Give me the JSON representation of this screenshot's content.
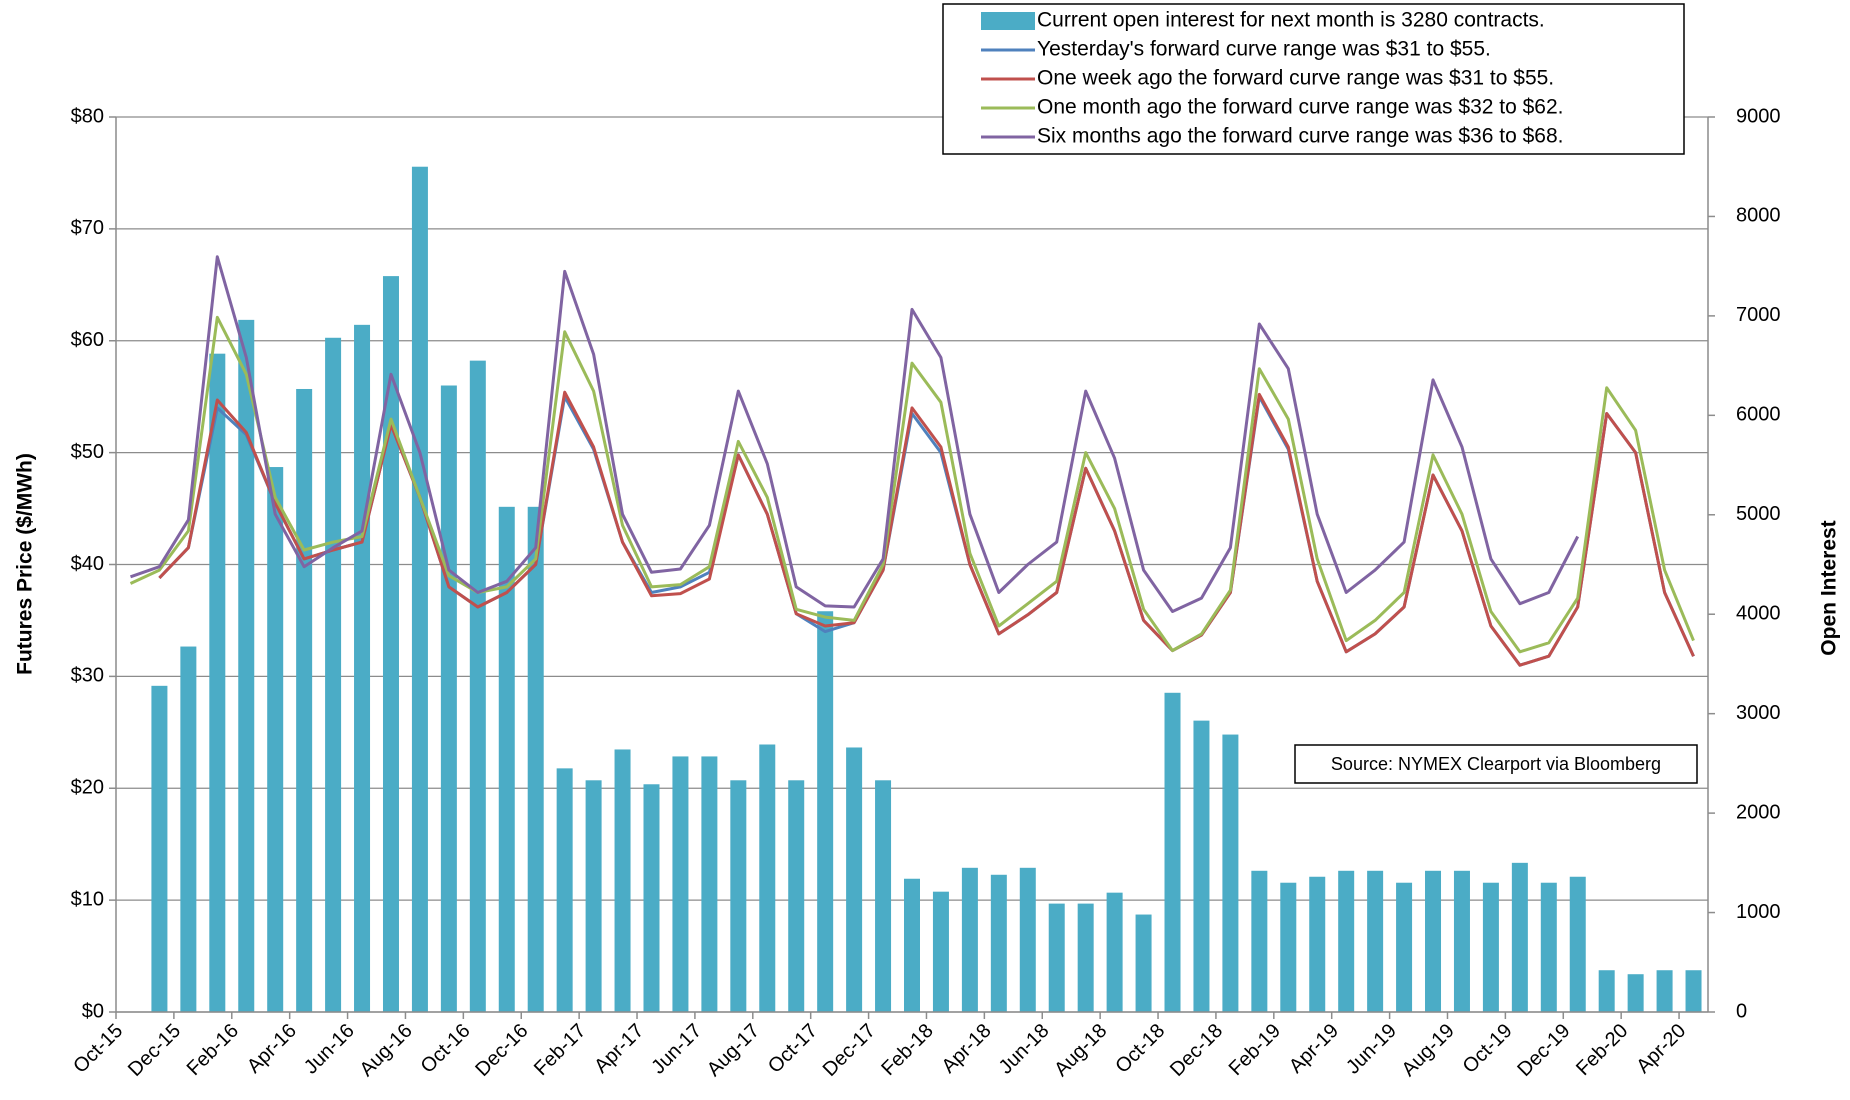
{
  "chart_data": {
    "type": "bar",
    "y_label": "Futures Price ($/MWh)",
    "y2_label": "Open Interest",
    "source": "Source: NYMEX Clearport via Bloomberg",
    "legend": "upper right",
    "grid": true,
    "categories": [
      "Oct-15",
      null,
      "Dec-15",
      null,
      "Feb-16",
      null,
      "Apr-16",
      null,
      "Jun-16",
      null,
      "Aug-16",
      null,
      "Oct-16",
      null,
      "Dec-16",
      null,
      "Feb-17",
      null,
      "Apr-17",
      null,
      "Jun-17",
      null,
      "Aug-17",
      null,
      "Oct-17",
      null,
      "Dec-17",
      null,
      "Feb-18",
      null,
      "Apr-18",
      null,
      "Jun-18",
      null,
      "Aug-18",
      null,
      "Oct-18",
      null,
      "Dec-18",
      null,
      "Feb-19",
      null,
      "Apr-19",
      null,
      "Jun-19",
      null,
      "Aug-19",
      null,
      "Oct-19",
      null,
      "Dec-19",
      null,
      "Feb-20",
      null,
      "Apr-20"
    ],
    "ylim": [
      0,
      80
    ],
    "yticks": [
      {
        "value": 0,
        "label": "$0"
      },
      {
        "value": 10,
        "label": "$10"
      },
      {
        "value": 20,
        "label": "$20"
      },
      {
        "value": 30,
        "label": "$30"
      },
      {
        "value": 40,
        "label": "$40"
      },
      {
        "value": 50,
        "label": "$50"
      },
      {
        "value": 60,
        "label": "$60"
      },
      {
        "value": 70,
        "label": "$70"
      },
      {
        "value": 80,
        "label": "$80"
      }
    ],
    "y2lim": [
      0,
      9000
    ],
    "y2ticks": [
      0,
      1000,
      2000,
      3000,
      4000,
      5000,
      6000,
      7000,
      8000,
      9000
    ],
    "series": [
      {
        "name": "Current open interest for next month is 3280 contracts.",
        "type": "bar",
        "axis": "y2",
        "color": "#4bacc6",
        "values": [
          null,
          3280,
          3675,
          6620,
          6960,
          5480,
          6265,
          6780,
          6910,
          7400,
          8500,
          6300,
          6550,
          5080,
          5080,
          2450,
          2330,
          2640,
          2290,
          2570,
          2570,
          2330,
          2690,
          2330,
          4030,
          2660,
          2330,
          1340,
          1210,
          1450,
          1380,
          1450,
          1090,
          1090,
          1200,
          980,
          3210,
          2930,
          2790,
          1420,
          1300,
          1360,
          1420,
          1420,
          1300,
          1420,
          1420,
          1300,
          1500,
          1300,
          1360,
          420,
          380,
          420,
          420
        ]
      },
      {
        "name": "Yesterday's forward curve range was $31 to $55.",
        "type": "line",
        "color": "#4f81bd",
        "values": [
          null,
          38.8,
          41.5,
          54.0,
          51.6,
          45.5,
          40.5,
          41.3,
          42.0,
          52.5,
          46.0,
          38.0,
          36.2,
          37.5,
          40.0,
          55.0,
          50.3,
          42.0,
          37.5,
          38.0,
          39.3,
          49.8,
          44.5,
          35.6,
          34.0,
          34.8,
          39.5,
          53.5,
          50.0,
          40.0,
          33.8,
          35.5,
          37.5,
          48.6,
          43.0,
          35.0,
          32.3,
          33.7,
          37.5,
          55.0,
          50.3,
          38.5,
          32.2,
          33.8,
          36.2,
          48.0,
          43.0,
          34.5,
          31.0,
          31.8,
          36.2,
          53.5,
          50.0,
          37.5,
          31.8
        ]
      },
      {
        "name": "One week ago the forward curve range was $31 to $55.",
        "type": "line",
        "color": "#c0504d",
        "values": [
          null,
          38.8,
          41.5,
          54.7,
          51.8,
          45.5,
          40.5,
          41.3,
          42.0,
          52.5,
          46.0,
          38.0,
          36.2,
          37.5,
          40.0,
          55.4,
          50.5,
          42.0,
          37.2,
          37.4,
          38.7,
          49.8,
          44.5,
          35.6,
          34.5,
          34.8,
          39.5,
          54.0,
          50.5,
          40.0,
          33.8,
          35.5,
          37.5,
          48.6,
          43.0,
          35.0,
          32.3,
          33.7,
          37.5,
          55.2,
          50.5,
          38.5,
          32.2,
          33.8,
          36.2,
          48.0,
          43.0,
          34.5,
          31.0,
          31.8,
          36.2,
          53.5,
          50.0,
          37.5,
          31.8
        ]
      },
      {
        "name": "One month ago the forward curve range was $32 to $62.",
        "type": "line",
        "color": "#9bbb59",
        "values": [
          38.3,
          39.5,
          43.0,
          62.1,
          57.0,
          46.0,
          41.3,
          42.0,
          42.5,
          53.0,
          46.0,
          39.0,
          37.5,
          38.0,
          40.5,
          60.8,
          55.5,
          43.5,
          38.0,
          38.2,
          39.8,
          51.0,
          46.0,
          36.0,
          35.3,
          35.0,
          40.0,
          58.0,
          54.5,
          41.0,
          34.5,
          36.5,
          38.5,
          50.0,
          45.0,
          36.0,
          32.3,
          33.8,
          37.7,
          57.5,
          53.0,
          40.5,
          33.2,
          35.0,
          37.5,
          49.8,
          44.5,
          35.8,
          32.2,
          33.0,
          37.0,
          55.8,
          52.0,
          39.5,
          33.2
        ]
      },
      {
        "name": "Six months ago the forward curve range was $36 to $68.",
        "type": "line",
        "color": "#8064a2",
        "values": [
          38.9,
          39.8,
          44.0,
          67.5,
          58.5,
          44.5,
          39.8,
          41.5,
          43.0,
          57.0,
          50.0,
          39.5,
          37.5,
          38.5,
          41.5,
          66.2,
          58.8,
          44.5,
          39.3,
          39.6,
          43.5,
          55.5,
          49.0,
          38.0,
          36.3,
          36.2,
          40.5,
          62.8,
          58.5,
          44.5,
          37.5,
          40.0,
          42.0,
          55.5,
          49.5,
          39.5,
          35.8,
          37.0,
          41.5,
          61.5,
          57.5,
          44.5,
          37.5,
          39.5,
          42.0,
          56.5,
          50.5,
          40.5,
          36.5,
          37.5,
          42.5,
          null,
          null,
          null,
          null
        ]
      }
    ]
  }
}
